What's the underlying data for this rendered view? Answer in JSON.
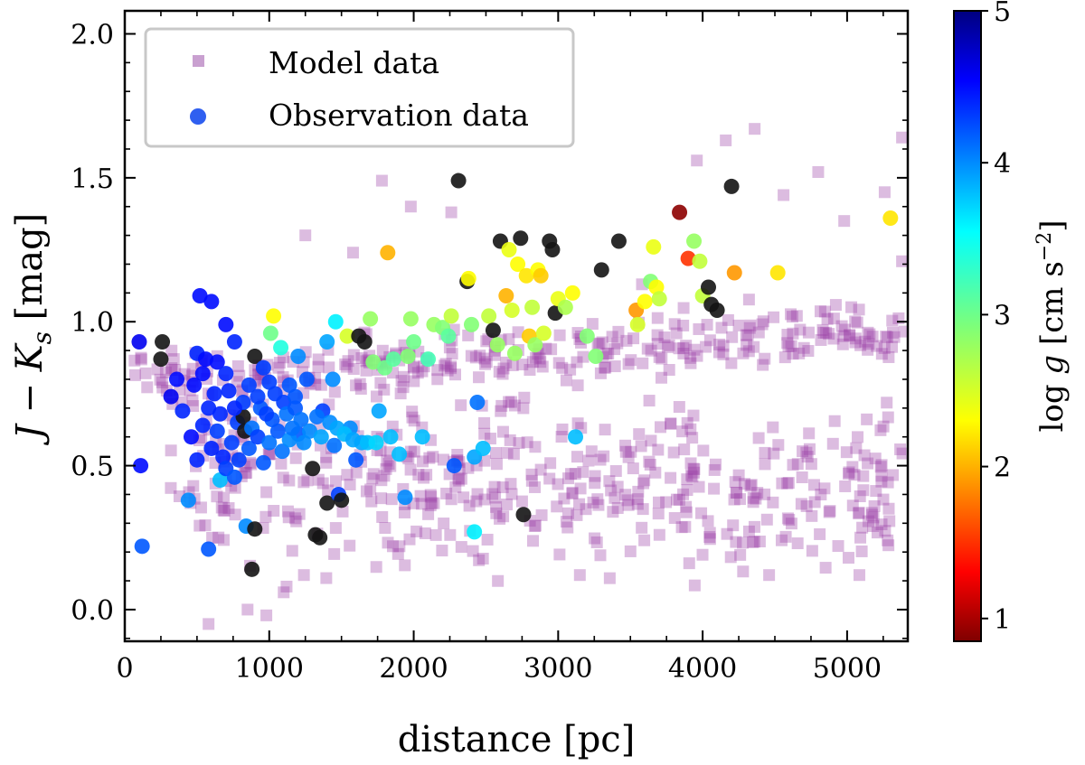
{
  "chart_data": {
    "type": "scatter",
    "title": "",
    "xlabel": "distance [pc]",
    "ylabel_parts": {
      "base": "J − K",
      "subscript": "s",
      "unit": " [mag]"
    },
    "xlim": [
      0,
      5420
    ],
    "ylim": [
      -0.11,
      2.08
    ],
    "xticks": [
      0,
      1000,
      2000,
      3000,
      4000,
      5000
    ],
    "xtick_labels": [
      "0",
      "1000",
      "2000",
      "3000",
      "4000",
      "5000"
    ],
    "yticks": [
      0.0,
      0.5,
      1.0,
      1.5,
      2.0
    ],
    "ytick_labels": [
      "0.0",
      "0.5",
      "1.0",
      "1.5",
      "2.0"
    ],
    "grid": false,
    "legend_position": "top-left",
    "legend": [
      {
        "label": "Model data",
        "marker": "square",
        "color": "#c9a0d0"
      },
      {
        "label": "Observation data",
        "marker": "circle",
        "color": "#2f5ff0"
      }
    ],
    "colorbar": {
      "label_parts": {
        "pre": "log ",
        "var": "g",
        "unit": " [cm s",
        "exp": "−2",
        "close": "]"
      },
      "range": [
        0.85,
        5.0
      ],
      "ticks": [
        1,
        2,
        3,
        4,
        5
      ],
      "tick_labels": [
        "1",
        "2",
        "3",
        "4",
        "5"
      ],
      "colormap": "jet_r"
    },
    "model_series": {
      "name": "Model data",
      "color": "#9a3fa6",
      "opacity": 0.35,
      "bands": [
        {
          "x_start": 50,
          "x_end": 5400,
          "y_start": 0.8,
          "y_end": 0.97,
          "spread": 0.05,
          "n": 300
        },
        {
          "x_start": 300,
          "x_end": 5400,
          "y_start": 0.55,
          "y_end": 0.42,
          "spread": 0.14,
          "n": 320
        },
        {
          "x_start": 400,
          "x_end": 5400,
          "y_start": 0.36,
          "y_end": 0.32,
          "spread": 0.1,
          "n": 160
        }
      ],
      "outliers": [
        [
          580,
          -0.05
        ],
        [
          850,
          0.0
        ],
        [
          980,
          -0.02
        ],
        [
          1100,
          0.06
        ],
        [
          1120,
          0.08
        ],
        [
          1240,
          0.12
        ],
        [
          1250,
          1.3
        ],
        [
          1580,
          1.24
        ],
        [
          1780,
          1.49
        ],
        [
          1980,
          1.4
        ],
        [
          2260,
          1.38
        ],
        [
          3580,
          1.13
        ],
        [
          3960,
          1.56
        ],
        [
          4160,
          1.63
        ],
        [
          4360,
          1.67
        ],
        [
          4560,
          1.44
        ],
        [
          4800,
          1.52
        ],
        [
          4980,
          1.35
        ],
        [
          5260,
          1.45
        ],
        [
          5380,
          1.64
        ],
        [
          5380,
          1.21
        ],
        [
          4460,
          0.12
        ],
        [
          5010,
          0.18
        ],
        [
          3150,
          0.12
        ],
        [
          4260,
          0.19
        ],
        [
          5180,
          0.29
        ]
      ]
    },
    "observation_series": {
      "name": "Observation data",
      "points": [
        [
          100,
          0.93,
          4.6
        ],
        [
          260,
          0.93,
          5.0
        ],
        [
          250,
          0.87,
          5.0
        ],
        [
          320,
          0.74,
          4.6
        ],
        [
          360,
          0.8,
          4.5
        ],
        [
          110,
          0.5,
          4.5
        ],
        [
          120,
          0.22,
          4.2
        ],
        [
          400,
          0.69,
          4.4
        ],
        [
          440,
          0.38,
          4.0
        ],
        [
          500,
          0.89,
          4.4
        ],
        [
          520,
          1.09,
          4.5
        ],
        [
          560,
          0.87,
          4.5
        ],
        [
          600,
          1.07,
          4.5
        ],
        [
          580,
          0.21,
          4.2
        ],
        [
          660,
          0.45,
          3.8
        ],
        [
          700,
          0.99,
          4.5
        ],
        [
          720,
          0.76,
          4.4
        ],
        [
          760,
          0.93,
          4.4
        ],
        [
          780,
          0.65,
          4.3
        ],
        [
          820,
          0.67,
          5.0
        ],
        [
          830,
          0.62,
          5.0
        ],
        [
          840,
          0.29,
          4.0
        ],
        [
          900,
          0.88,
          5.0
        ],
        [
          900,
          0.28,
          5.0
        ],
        [
          880,
          0.14,
          5.0
        ],
        [
          960,
          0.84,
          4.3
        ],
        [
          1000,
          0.79,
          4.3
        ],
        [
          1010,
          0.96,
          3.0
        ],
        [
          1030,
          1.02,
          2.3
        ],
        [
          1080,
          0.91,
          3.4
        ],
        [
          1100,
          0.72,
          4.3
        ],
        [
          1200,
          0.61,
          4.2
        ],
        [
          1200,
          0.88,
          4.0
        ],
        [
          1260,
          0.8,
          4.2
        ],
        [
          1300,
          0.49,
          5.0
        ],
        [
          1320,
          0.26,
          5.0
        ],
        [
          1350,
          0.25,
          5.0
        ],
        [
          1370,
          0.69,
          4.3
        ],
        [
          1400,
          0.93,
          3.9
        ],
        [
          1400,
          0.37,
          5.0
        ],
        [
          1440,
          0.8,
          4.0
        ],
        [
          1450,
          0.57,
          4.1
        ],
        [
          1460,
          1.0,
          3.6
        ],
        [
          1480,
          0.4,
          4.3
        ],
        [
          1500,
          0.38,
          5.0
        ],
        [
          1540,
          0.95,
          2.5
        ],
        [
          1560,
          0.63,
          4.0
        ],
        [
          1600,
          0.52,
          4.2
        ],
        [
          1620,
          0.95,
          5.0
        ],
        [
          1640,
          0.58,
          3.9
        ],
        [
          1660,
          0.93,
          5.0
        ],
        [
          1700,
          1.01,
          2.8
        ],
        [
          1720,
          0.86,
          2.9
        ],
        [
          1760,
          0.69,
          3.9
        ],
        [
          1800,
          0.84,
          3.0
        ],
        [
          1820,
          1.24,
          2.0
        ],
        [
          1860,
          0.87,
          3.1
        ],
        [
          1900,
          0.54,
          3.8
        ],
        [
          1940,
          0.39,
          4.0
        ],
        [
          1960,
          0.88,
          2.9
        ],
        [
          1980,
          1.01,
          2.8
        ],
        [
          2000,
          0.93,
          3.0
        ],
        [
          2060,
          0.6,
          3.8
        ],
        [
          2100,
          0.87,
          3.2
        ],
        [
          2140,
          0.99,
          2.8
        ],
        [
          2200,
          0.98,
          2.9
        ],
        [
          2240,
          0.95,
          3.1
        ],
        [
          2260,
          1.02,
          2.6
        ],
        [
          2280,
          0.5,
          4.2
        ],
        [
          2310,
          1.49,
          5.0
        ],
        [
          2370,
          1.14,
          5.0
        ],
        [
          2380,
          1.15,
          2.3
        ],
        [
          2400,
          0.99,
          2.9
        ],
        [
          2420,
          0.53,
          3.9
        ],
        [
          2420,
          0.27,
          3.6
        ],
        [
          2440,
          0.72,
          4.1
        ],
        [
          2480,
          0.56,
          3.8
        ],
        [
          2520,
          1.02,
          2.6
        ],
        [
          2550,
          0.97,
          5.0
        ],
        [
          2580,
          0.92,
          2.8
        ],
        [
          2600,
          1.28,
          5.0
        ],
        [
          2640,
          1.09,
          2.0
        ],
        [
          2660,
          1.25,
          2.4
        ],
        [
          2680,
          1.04,
          2.5
        ],
        [
          2700,
          0.89,
          2.8
        ],
        [
          2720,
          1.2,
          2.3
        ],
        [
          2740,
          1.29,
          5.0
        ],
        [
          2760,
          0.33,
          5.0
        ],
        [
          2780,
          1.16,
          2.2
        ],
        [
          2800,
          0.95,
          2.1
        ],
        [
          2820,
          1.05,
          2.6
        ],
        [
          2840,
          0.92,
          2.8
        ],
        [
          2860,
          1.18,
          2.3
        ],
        [
          2880,
          1.16,
          2.1
        ],
        [
          2900,
          0.96,
          2.5
        ],
        [
          2940,
          1.28,
          5.0
        ],
        [
          2960,
          1.25,
          5.0
        ],
        [
          2980,
          1.03,
          5.0
        ],
        [
          3000,
          1.08,
          2.4
        ],
        [
          3050,
          1.05,
          2.7
        ],
        [
          3100,
          1.1,
          2.3
        ],
        [
          3120,
          0.6,
          3.8
        ],
        [
          3200,
          0.95,
          2.9
        ],
        [
          3260,
          0.88,
          2.9
        ],
        [
          3300,
          1.18,
          5.0
        ],
        [
          3420,
          1.28,
          5.0
        ],
        [
          3540,
          1.04,
          1.9
        ],
        [
          3600,
          1.07,
          2.3
        ],
        [
          3640,
          1.14,
          2.9
        ],
        [
          3660,
          1.26,
          2.4
        ],
        [
          3680,
          1.12,
          2.3
        ],
        [
          3700,
          1.08,
          2.6
        ],
        [
          3840,
          1.38,
          0.9
        ],
        [
          3900,
          1.22,
          1.5
        ],
        [
          3940,
          1.28,
          2.8
        ],
        [
          3980,
          1.21,
          2.6
        ],
        [
          4000,
          1.09,
          2.6
        ],
        [
          4040,
          1.12,
          5.0
        ],
        [
          4060,
          1.06,
          5.0
        ],
        [
          4100,
          1.04,
          5.0
        ],
        [
          4200,
          1.47,
          5.0
        ],
        [
          4220,
          1.17,
          1.9
        ],
        [
          4520,
          1.17,
          2.2
        ],
        [
          5300,
          1.36,
          2.2
        ],
        [
          3550,
          0.99,
          2.5
        ],
        [
          600,
          0.56,
          4.4
        ],
        [
          640,
          0.62,
          4.3
        ],
        [
          680,
          0.53,
          4.4
        ],
        [
          700,
          0.49,
          4.3
        ],
        [
          740,
          0.58,
          4.3
        ],
        [
          760,
          0.46,
          4.2
        ],
        [
          790,
          0.52,
          4.3
        ],
        [
          860,
          0.56,
          4.2
        ],
        [
          880,
          0.63,
          4.1
        ],
        [
          920,
          0.6,
          4.3
        ],
        [
          940,
          0.7,
          4.2
        ],
        [
          960,
          0.51,
          4.2
        ],
        [
          1000,
          0.58,
          4.1
        ],
        [
          1020,
          0.66,
          4.2
        ],
        [
          1060,
          0.62,
          4.2
        ],
        [
          1090,
          0.55,
          4.1
        ],
        [
          1120,
          0.68,
          4.1
        ],
        [
          1140,
          0.59,
          4.0
        ],
        [
          1160,
          0.63,
          4.1
        ],
        [
          1180,
          0.7,
          4.2
        ],
        [
          1220,
          0.66,
          4.1
        ],
        [
          1240,
          0.58,
          4.0
        ],
        [
          1280,
          0.62,
          4.0
        ],
        [
          1330,
          0.67,
          4.1
        ],
        [
          1360,
          0.6,
          3.9
        ],
        [
          1420,
          0.65,
          4.0
        ],
        [
          1470,
          0.63,
          3.9
        ],
        [
          1520,
          0.61,
          3.8
        ],
        [
          1580,
          0.59,
          3.9
        ],
        [
          1680,
          0.58,
          3.8
        ],
        [
          1740,
          0.58,
          3.7
        ],
        [
          1840,
          0.6,
          3.8
        ],
        [
          580,
          0.7,
          4.4
        ],
        [
          620,
          0.75,
          4.4
        ],
        [
          660,
          0.68,
          4.4
        ],
        [
          820,
          0.72,
          4.3
        ],
        [
          860,
          0.78,
          4.3
        ],
        [
          920,
          0.74,
          4.3
        ],
        [
          980,
          0.68,
          4.3
        ],
        [
          1040,
          0.75,
          4.3
        ],
        [
          1140,
          0.78,
          4.2
        ],
        [
          1180,
          0.74,
          4.2
        ],
        [
          460,
          0.6,
          4.5
        ],
        [
          500,
          0.52,
          4.4
        ],
        [
          540,
          0.64,
          4.4
        ],
        [
          480,
          0.78,
          4.5
        ],
        [
          540,
          0.82,
          4.5
        ],
        [
          640,
          0.86,
          4.5
        ],
        [
          700,
          0.82,
          4.4
        ],
        [
          760,
          0.7,
          4.4
        ]
      ]
    }
  }
}
